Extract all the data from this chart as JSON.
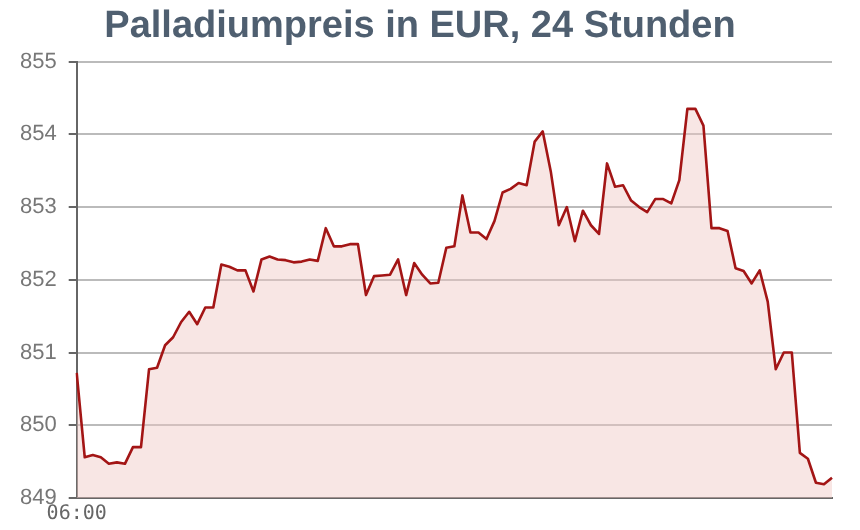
{
  "chart_data": {
    "type": "area",
    "title": "Palladiumpreis in EUR, 24 Stunden",
    "categories": [
      "06:00",
      null,
      null,
      null,
      null,
      null,
      null,
      null,
      null,
      null,
      null,
      null,
      null,
      null,
      null,
      null,
      null,
      null,
      null,
      null,
      null,
      null,
      null,
      null,
      null,
      null,
      null,
      null,
      null,
      null,
      null,
      null,
      null,
      null,
      null,
      null,
      null,
      null,
      null,
      null,
      null,
      null,
      null,
      null,
      null,
      null,
      null,
      null,
      null,
      null,
      null,
      null,
      null,
      null,
      null,
      null,
      null,
      null,
      null,
      null,
      null,
      null,
      null,
      null,
      null,
      null,
      null,
      null,
      null,
      null,
      null,
      null,
      null,
      null,
      null,
      null,
      null,
      null,
      null,
      null,
      null,
      null,
      null,
      null,
      null,
      null,
      null,
      null,
      null,
      null,
      null,
      null,
      null,
      null,
      null
    ],
    "series": [
      {
        "color": "#a31515",
        "values": [
          850.72,
          849.56,
          849.59,
          849.56,
          849.47,
          849.49,
          849.47,
          849.7,
          849.7,
          850.77,
          850.79,
          851.1,
          851.21,
          851.42,
          851.56,
          851.39,
          851.62,
          851.62,
          852.21,
          852.18,
          852.13,
          852.13,
          851.84,
          852.28,
          852.32,
          852.28,
          852.27,
          852.24,
          852.25,
          852.28,
          852.26,
          852.71,
          852.46,
          852.46,
          852.49,
          852.49,
          851.79,
          852.05,
          852.06,
          852.07,
          852.28,
          851.79,
          852.23,
          852.07,
          851.95,
          851.96,
          852.44,
          852.46,
          853.16,
          852.65,
          852.65,
          852.56,
          852.81,
          853.2,
          853.25,
          853.33,
          853.3,
          853.9,
          854.04,
          853.49,
          852.75,
          853.0,
          852.53,
          852.95,
          852.75,
          852.63,
          853.6,
          853.28,
          853.3,
          853.09,
          853.0,
          852.93,
          853.11,
          853.11,
          853.05,
          853.37,
          854.35,
          854.35,
          854.12,
          852.71,
          852.71,
          852.67,
          852.16,
          852.12,
          851.95,
          852.13,
          851.7,
          850.77,
          851.0,
          851.0,
          849.62,
          849.54,
          849.21,
          849.19,
          849.28
        ]
      }
    ],
    "ylim": [
      849,
      855
    ],
    "yticks": [
      849,
      850,
      851,
      852,
      853,
      854,
      855
    ],
    "grid": "y",
    "legend": false
  }
}
